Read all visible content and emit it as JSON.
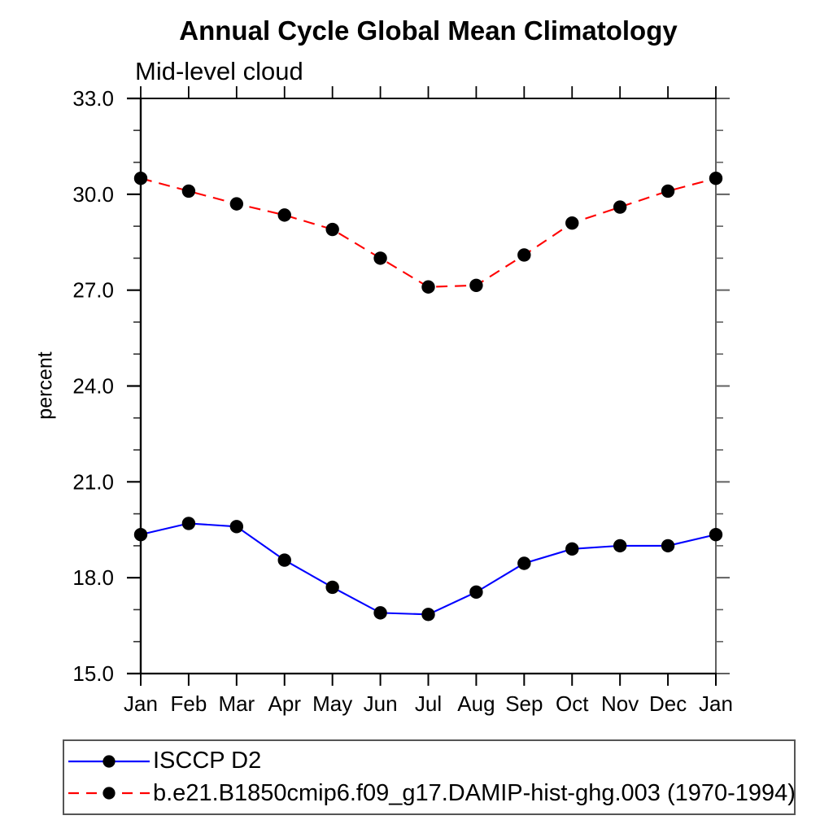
{
  "chart_data": {
    "type": "line",
    "title": "Annual Cycle Global Mean Climatology",
    "subtitle": "Mid-level cloud",
    "ylabel": "percent",
    "x_categories": [
      "Jan",
      "Feb",
      "Mar",
      "Apr",
      "May",
      "Jun",
      "Jul",
      "Aug",
      "Sep",
      "Oct",
      "Nov",
      "Dec",
      "Jan"
    ],
    "ylim": [
      15.0,
      33.0
    ],
    "ytick_major": [
      15.0,
      18.0,
      21.0,
      24.0,
      27.0,
      30.0,
      33.0
    ],
    "ytick_minor_interval": 1.0,
    "ytick_label_decimals": 1,
    "grid": false,
    "legend_position": "bottom-left-box",
    "frame_color": "#000000",
    "right_axis_color": "#606060",
    "marker_shape": "filled-circle",
    "series": [
      {
        "name": "ISCCP D2",
        "color": "#0000ff",
        "line_style": "solid",
        "marker_color": "#000000",
        "values": [
          19.35,
          19.7,
          19.6,
          18.55,
          17.7,
          16.9,
          16.85,
          17.55,
          18.45,
          18.9,
          19.0,
          19.0,
          19.35
        ]
      },
      {
        "name": "b.e21.B1850cmip6.f09_g17.DAMIP-hist-ghg.003 (1970-1994)",
        "color": "#ff0000",
        "line_style": "dashed",
        "marker_color": "#000000",
        "values": [
          30.5,
          30.1,
          29.7,
          29.35,
          28.9,
          28.0,
          27.1,
          27.15,
          28.1,
          29.1,
          29.6,
          30.1,
          30.5
        ]
      }
    ]
  }
}
